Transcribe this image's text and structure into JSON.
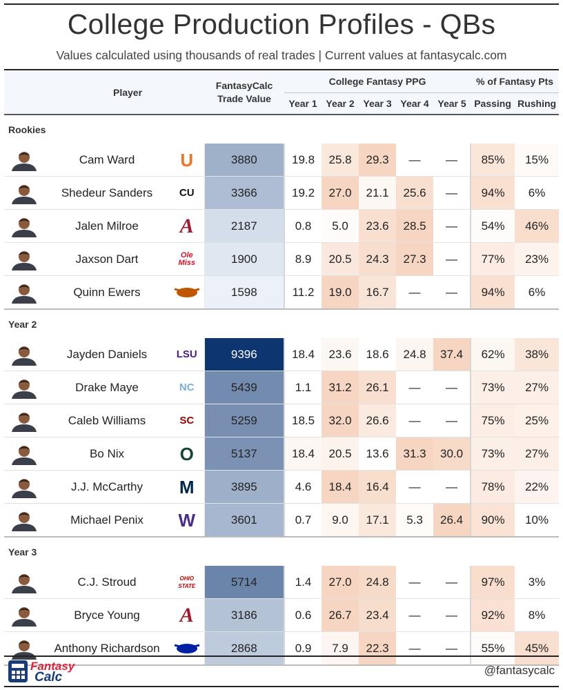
{
  "title": "College Production Profiles - QBs",
  "subtitle": "Values calculated using thousands of real trades | Current values at fantasycalc.com",
  "headers": {
    "player": "Player",
    "trade_value": "FantasyCalc\nTrade Value",
    "ppg_group": "College Fantasy PPG",
    "pct_group": "% of Fantasy Pts",
    "years": [
      "Year 1",
      "Year 2",
      "Year 3",
      "Year 4",
      "Year 5"
    ],
    "passing": "Passing",
    "rushing": "Rushing"
  },
  "colors": {
    "value_scale_low": "#f1f6fc",
    "value_scale_high": "#0d3570",
    "ppg_scale_high": "#f6d6c2",
    "pct_scale_high": "#f8d8c5",
    "header_bg": "#f4f8fd",
    "logo_miami": "#f47321",
    "logo_colorado": "#111111",
    "logo_alabama": "#9e1b32",
    "logo_olemiss": "#ce1126",
    "logo_texas": "#bf5700",
    "logo_lsu": "#461d7c",
    "logo_unc": "#7bafd4",
    "logo_usc": "#990000",
    "logo_oregon": "#154733",
    "logo_michigan": "#00274c",
    "logo_washington": "#4b2e83",
    "logo_ohiostate": "#bb0000",
    "logo_florida": "#0021a5"
  },
  "sections": [
    {
      "label": "Rookies",
      "players": [
        {
          "name": "Cam Ward",
          "avatar_icon": "headshot-icon",
          "logo_icon": "miami-u-logo",
          "logo_text": "U",
          "logo_color": "#f47321",
          "value": 3880,
          "ppg": [
            "19.8",
            "25.8",
            "29.3",
            "—",
            "—"
          ],
          "passing": "85%",
          "rushing": "15%"
        },
        {
          "name": "Shedeur Sanders",
          "avatar_icon": "headshot-icon",
          "logo_icon": "colorado-cu-logo",
          "logo_text": "CU",
          "logo_color": "#111111",
          "value": 3366,
          "ppg": [
            "19.2",
            "27.0",
            "21.1",
            "25.6",
            "—"
          ],
          "passing": "94%",
          "rushing": "6%"
        },
        {
          "name": "Jalen Milroe",
          "avatar_icon": "headshot-icon",
          "logo_icon": "alabama-a-logo",
          "logo_text": "A",
          "logo_color": "#9e1b32",
          "value": 2187,
          "ppg": [
            "0.8",
            "5.0",
            "23.6",
            "28.5",
            "—"
          ],
          "passing": "54%",
          "rushing": "46%"
        },
        {
          "name": "Jaxson Dart",
          "avatar_icon": "headshot-icon",
          "logo_icon": "ole-miss-logo",
          "logo_text": "Ole Miss",
          "logo_color": "#ce1126",
          "value": 1900,
          "ppg": [
            "8.9",
            "20.5",
            "24.3",
            "27.3",
            "—"
          ],
          "passing": "77%",
          "rushing": "23%"
        },
        {
          "name": "Quinn Ewers",
          "avatar_icon": "headshot-icon",
          "logo_icon": "texas-longhorn-logo",
          "logo_text": "",
          "logo_color": "#bf5700",
          "value": 1598,
          "ppg": [
            "11.2",
            "19.0",
            "16.7",
            "—",
            "—"
          ],
          "passing": "94%",
          "rushing": "6%"
        }
      ]
    },
    {
      "label": "Year 2",
      "players": [
        {
          "name": "Jayden Daniels",
          "avatar_icon": "headshot-icon",
          "logo_icon": "lsu-logo",
          "logo_text": "LSU",
          "logo_color": "#461d7c",
          "value": 9396,
          "ppg": [
            "18.4",
            "23.6",
            "18.6",
            "24.8",
            "37.4"
          ],
          "passing": "62%",
          "rushing": "38%"
        },
        {
          "name": "Drake Maye",
          "avatar_icon": "headshot-icon",
          "logo_icon": "unc-logo",
          "logo_text": "NC",
          "logo_color": "#7bafd4",
          "value": 5439,
          "ppg": [
            "1.1",
            "31.2",
            "26.1",
            "—",
            "—"
          ],
          "passing": "73%",
          "rushing": "27%"
        },
        {
          "name": "Caleb Williams",
          "avatar_icon": "headshot-icon",
          "logo_icon": "usc-logo",
          "logo_text": "SC",
          "logo_color": "#990000",
          "value": 5259,
          "ppg": [
            "18.5",
            "32.0",
            "26.6",
            "—",
            "—"
          ],
          "passing": "75%",
          "rushing": "25%"
        },
        {
          "name": "Bo Nix",
          "avatar_icon": "headshot-icon",
          "logo_icon": "oregon-o-logo",
          "logo_text": "O",
          "logo_color": "#154733",
          "value": 5137,
          "ppg": [
            "18.4",
            "20.5",
            "13.6",
            "31.3",
            "30.0"
          ],
          "passing": "73%",
          "rushing": "27%"
        },
        {
          "name": "J.J. McCarthy",
          "avatar_icon": "headshot-icon",
          "logo_icon": "michigan-m-logo",
          "logo_text": "M",
          "logo_color": "#00274c",
          "value": 3895,
          "ppg": [
            "4.6",
            "18.4",
            "16.4",
            "—",
            "—"
          ],
          "passing": "78%",
          "rushing": "22%"
        },
        {
          "name": "Michael Penix",
          "avatar_icon": "headshot-icon",
          "logo_icon": "washington-w-logo",
          "logo_text": "W",
          "logo_color": "#4b2e83",
          "value": 3601,
          "ppg": [
            "0.7",
            "9.0",
            "17.1",
            "5.3",
            "26.4"
          ],
          "passing": "90%",
          "rushing": "10%"
        }
      ]
    },
    {
      "label": "Year 3",
      "players": [
        {
          "name": "C.J. Stroud",
          "avatar_icon": "headshot-icon",
          "logo_icon": "ohio-state-logo",
          "logo_text": "OHIO STATE",
          "logo_color": "#bb0000",
          "value": 5714,
          "ppg": [
            "1.4",
            "27.0",
            "24.8",
            "—",
            "—"
          ],
          "passing": "97%",
          "rushing": "3%"
        },
        {
          "name": "Bryce Young",
          "avatar_icon": "headshot-icon",
          "logo_icon": "alabama-a-logo",
          "logo_text": "A",
          "logo_color": "#9e1b32",
          "value": 3186,
          "ppg": [
            "0.6",
            "26.7",
            "23.4",
            "—",
            "—"
          ],
          "passing": "92%",
          "rushing": "8%"
        },
        {
          "name": "Anthony Richardson",
          "avatar_icon": "headshot-icon",
          "logo_icon": "florida-gator-logo",
          "logo_text": "",
          "logo_color": "#0021a5",
          "value": 2868,
          "ppg": [
            "0.9",
            "7.9",
            "22.3",
            "—",
            "—"
          ],
          "passing": "55%",
          "rushing": "45%"
        }
      ]
    }
  ],
  "footer": {
    "brand_top": "Fantasy",
    "brand_bottom": "Calc",
    "brand_icon": "calculator-icon",
    "handle": "@fantasycalc"
  }
}
